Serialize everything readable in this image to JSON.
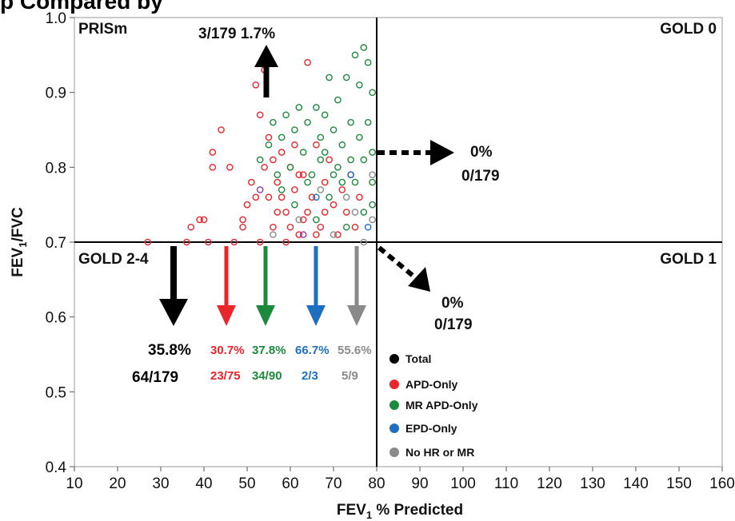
{
  "banner_text": "p Compared by",
  "chart_data": {
    "type": "scatter",
    "xlabel_main": "FEV",
    "xlabel_sub": "1",
    "xlabel_rest": " % Predicted",
    "ylabel_main": "FEV",
    "ylabel_sub": "1",
    "ylabel_rest": "/FVC",
    "xlim": [
      10,
      160
    ],
    "ylim": [
      0.4,
      1.0
    ],
    "x_ticks": [
      "10",
      "20",
      "30",
      "40",
      "50",
      "60",
      "70",
      "80",
      "90",
      "100",
      "110",
      "120",
      "130",
      "140",
      "150",
      "160"
    ],
    "y_ticks": [
      "0.4",
      "0.5",
      "0.6",
      "0.7",
      "0.8",
      "0.9",
      "1.0"
    ],
    "divider_x": 80,
    "divider_y": 0.7,
    "quadrants": {
      "top_left": "PRISm",
      "top_right": "GOLD 0",
      "bottom_left": "GOLD 2-4",
      "bottom_right": "GOLD 1"
    },
    "annotations": {
      "prism_up": "3/179 1.7%",
      "gold0_pct": "0%",
      "gold0_count": "0/179",
      "gold1_pct": "0%",
      "gold1_count": "0/179"
    },
    "gold24_groups": [
      {
        "name": "Total",
        "pct": "35.8%",
        "count": "64/179",
        "color": "#000000"
      },
      {
        "name": "APD-Only",
        "pct": "30.7%",
        "count": "23/75",
        "color": "#e8262b"
      },
      {
        "name": "MR APD-Only",
        "pct": "37.8%",
        "count": "34/90",
        "color": "#1c8a3c"
      },
      {
        "name": "EPD-Only",
        "pct": "66.7%",
        "count": "2/3",
        "color": "#1f6fc0"
      },
      {
        "name": "No HR or MR",
        "pct": "55.6%",
        "count": "5/9",
        "color": "#8a8a8a"
      }
    ],
    "legend": [
      "Total",
      "APD-Only",
      "MR APD-Only",
      "EPD-Only",
      "No HR or MR"
    ],
    "legend_placement": "bottom-right of lower-right quadrant",
    "series": [
      {
        "name": "APD-Only",
        "color": "#e8262b",
        "points": [
          [
            27,
            0.7
          ],
          [
            36,
            0.7
          ],
          [
            37,
            0.72
          ],
          [
            39,
            0.73
          ],
          [
            40,
            0.73
          ],
          [
            41,
            0.7
          ],
          [
            42,
            0.82
          ],
          [
            42,
            0.8
          ],
          [
            44,
            0.85
          ],
          [
            46,
            0.8
          ],
          [
            47,
            0.7
          ],
          [
            49,
            0.72
          ],
          [
            50,
            0.75
          ],
          [
            51,
            0.78
          ],
          [
            52,
            0.91
          ],
          [
            53,
            0.87
          ],
          [
            54,
            0.93
          ],
          [
            54,
            0.8
          ],
          [
            55,
            0.84
          ],
          [
            55,
            0.76
          ],
          [
            56,
            0.72
          ],
          [
            57,
            0.78
          ],
          [
            58,
            0.82
          ],
          [
            58,
            0.76
          ],
          [
            59,
            0.74
          ],
          [
            60,
            0.8
          ],
          [
            60,
            0.72
          ],
          [
            61,
            0.77
          ],
          [
            62,
            0.71
          ],
          [
            63,
            0.79
          ],
          [
            64,
            0.94
          ],
          [
            64,
            0.74
          ],
          [
            65,
            0.76
          ],
          [
            66,
            0.83
          ],
          [
            67,
            0.72
          ],
          [
            68,
            0.78
          ],
          [
            69,
            0.81
          ],
          [
            70,
            0.75
          ],
          [
            71,
            0.71
          ],
          [
            72,
            0.77
          ],
          [
            73,
            0.74
          ],
          [
            74,
            0.79
          ],
          [
            75,
            0.72
          ],
          [
            76,
            0.76
          ],
          [
            49,
            0.73
          ],
          [
            52,
            0.76
          ],
          [
            56,
            0.81
          ],
          [
            59,
            0.7
          ],
          [
            61,
            0.83
          ],
          [
            63,
            0.73
          ],
          [
            53,
            0.7
          ],
          [
            57,
            0.74
          ],
          [
            62,
            0.79
          ],
          [
            66,
            0.71
          ],
          [
            68,
            0.74
          ]
        ]
      },
      {
        "name": "MR APD-Only",
        "color": "#1c8a3c",
        "points": [
          [
            53,
            0.81
          ],
          [
            55,
            0.83
          ],
          [
            56,
            0.86
          ],
          [
            57,
            0.79
          ],
          [
            58,
            0.84
          ],
          [
            59,
            0.87
          ],
          [
            60,
            0.8
          ],
          [
            61,
            0.85
          ],
          [
            62,
            0.88
          ],
          [
            63,
            0.82
          ],
          [
            64,
            0.86
          ],
          [
            65,
            0.79
          ],
          [
            66,
            0.88
          ],
          [
            67,
            0.84
          ],
          [
            68,
            0.87
          ],
          [
            69,
            0.92
          ],
          [
            70,
            0.85
          ],
          [
            71,
            0.89
          ],
          [
            72,
            0.83
          ],
          [
            73,
            0.92
          ],
          [
            74,
            0.86
          ],
          [
            75,
            0.95
          ],
          [
            76,
            0.91
          ],
          [
            77,
            0.96
          ],
          [
            78,
            0.94
          ],
          [
            79,
            0.9
          ],
          [
            58,
            0.77
          ],
          [
            61,
            0.75
          ],
          [
            64,
            0.78
          ],
          [
            66,
            0.73
          ],
          [
            69,
            0.76
          ],
          [
            71,
            0.8
          ],
          [
            73,
            0.72
          ],
          [
            75,
            0.78
          ],
          [
            77,
            0.81
          ],
          [
            79,
            0.75
          ],
          [
            68,
            0.82
          ],
          [
            72,
            0.78
          ],
          [
            76,
            0.84
          ],
          [
            78,
            0.86
          ],
          [
            79,
            0.82
          ],
          [
            79,
            0.78
          ],
          [
            77,
            0.74
          ],
          [
            74,
            0.81
          ],
          [
            70,
            0.79
          ],
          [
            67,
            0.81
          ]
        ]
      },
      {
        "name": "EPD-Only",
        "color": "#1f6fc0",
        "points": [
          [
            66,
            0.76
          ],
          [
            74,
            0.79
          ],
          [
            78,
            0.72
          ]
        ]
      },
      {
        "name": "No HR or MR",
        "color": "#8a8a8a",
        "points": [
          [
            56,
            0.71
          ],
          [
            62,
            0.73
          ],
          [
            67,
            0.77
          ],
          [
            70,
            0.71
          ],
          [
            73,
            0.76
          ],
          [
            75,
            0.74
          ],
          [
            77,
            0.7
          ],
          [
            79,
            0.73
          ],
          [
            79,
            0.79
          ]
        ]
      },
      {
        "name": "Purple",
        "color": "#8b3ea8",
        "points": [
          [
            53,
            0.77
          ],
          [
            63,
            0.71
          ]
        ]
      }
    ]
  }
}
